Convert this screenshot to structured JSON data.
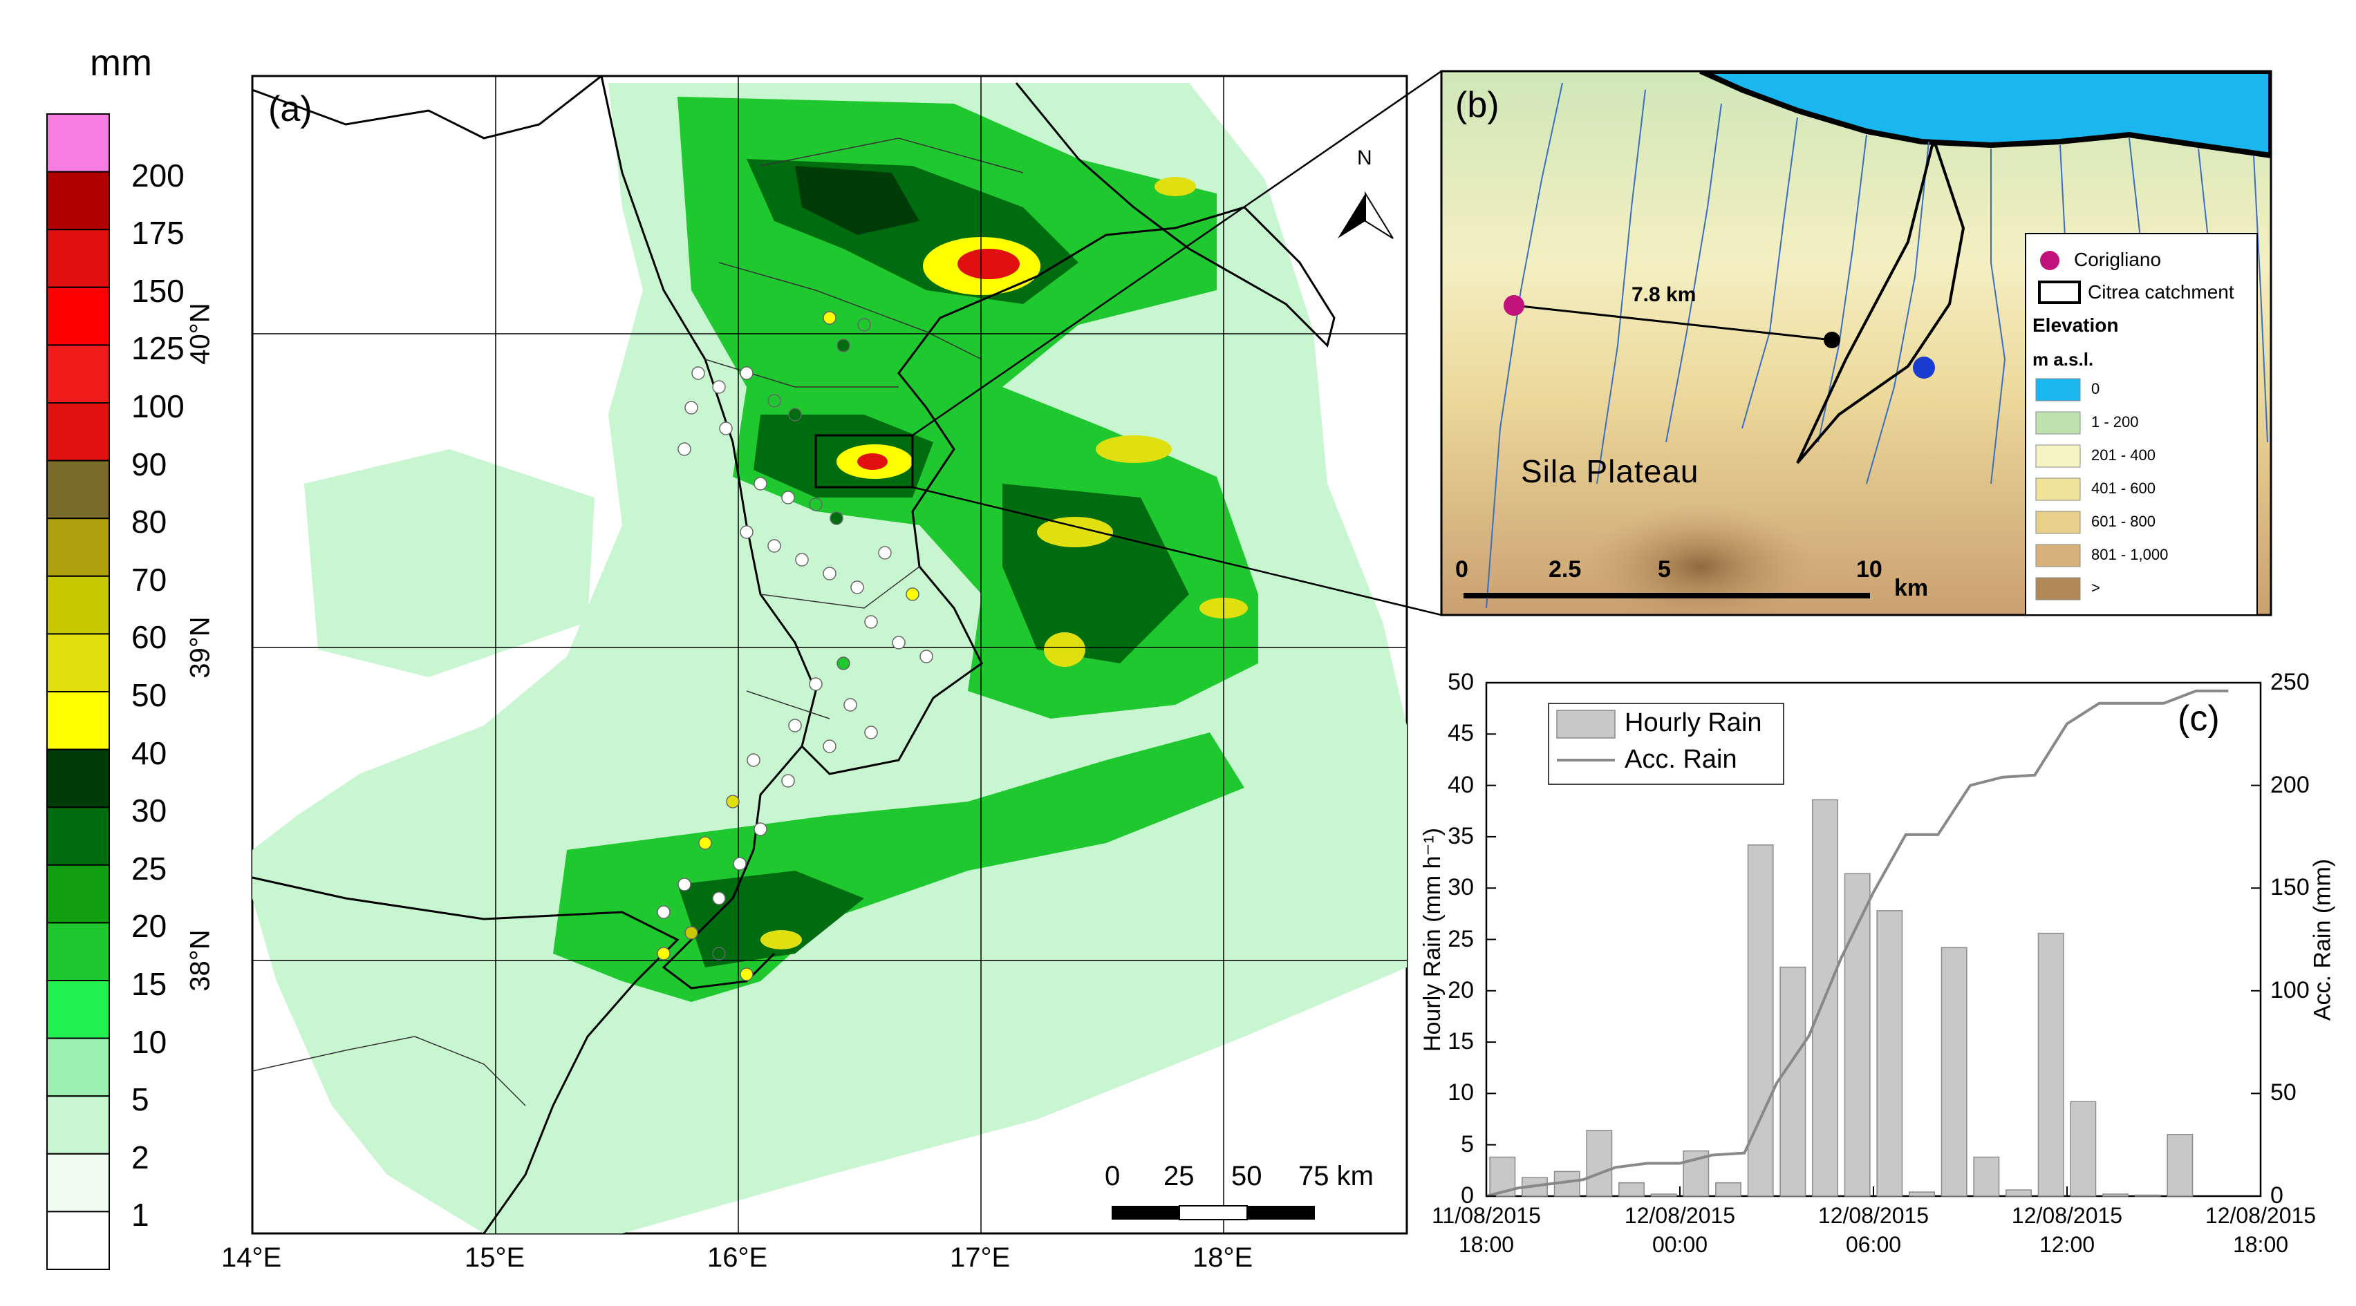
{
  "legend": {
    "unit": "mm",
    "bins": [
      {
        "label": "200",
        "color": "#f77ee0"
      },
      {
        "label": "175",
        "color": "#b00000"
      },
      {
        "label": "150",
        "color": "#e01010"
      },
      {
        "label": "125",
        "color": "#ff0000"
      },
      {
        "label": "100",
        "color": "#f01c1c"
      },
      {
        "label": "90",
        "color": "#e01212"
      },
      {
        "label": "80",
        "color": "#7a6b2a"
      },
      {
        "label": "70",
        "color": "#b0a010"
      },
      {
        "label": "60",
        "color": "#c8c800"
      },
      {
        "label": "50",
        "color": "#e0e010"
      },
      {
        "label": "40",
        "color": "#ffff00"
      },
      {
        "label": "30",
        "color": "#003c08"
      },
      {
        "label": "25",
        "color": "#006c10"
      },
      {
        "label": "20",
        "color": "#10a010"
      },
      {
        "label": "15",
        "color": "#20c830"
      },
      {
        "label": "10",
        "color": "#20f050"
      },
      {
        "label": "5",
        "color": "#9cf0b0"
      },
      {
        "label": "2",
        "color": "#c8f6d0"
      },
      {
        "label": "1",
        "color": "#f0fbf1"
      },
      {
        "label": "",
        "color": "#ffffff"
      }
    ]
  },
  "panel_a": {
    "label": "(a)",
    "north": "N",
    "lon_ticks": [
      "14°E",
      "15°E",
      "16°E",
      "17°E",
      "18°E"
    ],
    "lat_ticks": [
      "40°N",
      "39°N",
      "38°N"
    ],
    "scalebar": [
      "0",
      "25",
      "50",
      "75 km"
    ]
  },
  "panel_b": {
    "label": "(b)",
    "distance_label": "7.8 km",
    "place_label": "Sila Plateau",
    "scalebar": [
      "0",
      "2.5",
      "5",
      "10",
      "km"
    ],
    "legend": {
      "station": "Corigliano",
      "catchment": "Citrea catchment",
      "elevation_title": "Elevation",
      "unit": "m a.s.l.",
      "classes": [
        {
          "label": "0",
          "color": "#1ab6f0"
        },
        {
          "label": "1 - 200",
          "color": "#bfe3b0"
        },
        {
          "label": "201 - 400",
          "color": "#f6f3c4"
        },
        {
          "label": "401 - 600",
          "color": "#f2e39a"
        },
        {
          "label": "601 - 800",
          "color": "#e8d08a"
        },
        {
          "label": "801 - 1,000",
          "color": "#d6b27a"
        },
        {
          "label": ">",
          "color": "#b08858"
        }
      ]
    }
  },
  "panel_c": {
    "label": "(c)",
    "chart_data": {
      "type": "bar",
      "xlabel_ticks": [
        "11/08/2015\n18:00",
        "12/08/2015\n00:00",
        "12/08/2015\n06:00",
        "12/08/2015\n12:00",
        "12/08/2015\n18:00"
      ],
      "ylabel": "Hourly Rain (mm h⁻¹)",
      "y2label": "Acc. Rain (mm)",
      "ylim": [
        0,
        50
      ],
      "y2lim": [
        0,
        250
      ],
      "yticks": [
        0,
        5,
        10,
        15,
        20,
        25,
        30,
        35,
        40,
        45,
        50
      ],
      "y2ticks": [
        0,
        50,
        100,
        150,
        200,
        250
      ],
      "series": [
        {
          "name": "Hourly Rain",
          "kind": "bar",
          "values": [
            3.8,
            1.8,
            2.4,
            6.4,
            1.3,
            0.2,
            4.4,
            1.3,
            34.2,
            22.3,
            38.6,
            31.4,
            27.8,
            0.4,
            24.2,
            3.8,
            0.6,
            25.6,
            9.2,
            0.2,
            0.1,
            6.0,
            0
          ]
        },
        {
          "name": "Acc. Rain",
          "kind": "line",
          "values": [
            0,
            4,
            6,
            8,
            14,
            16,
            16,
            20,
            21,
            55,
            78,
            116,
            148,
            176,
            176,
            200,
            204,
            205,
            230,
            240,
            240,
            240,
            246,
            246
          ]
        }
      ]
    }
  }
}
